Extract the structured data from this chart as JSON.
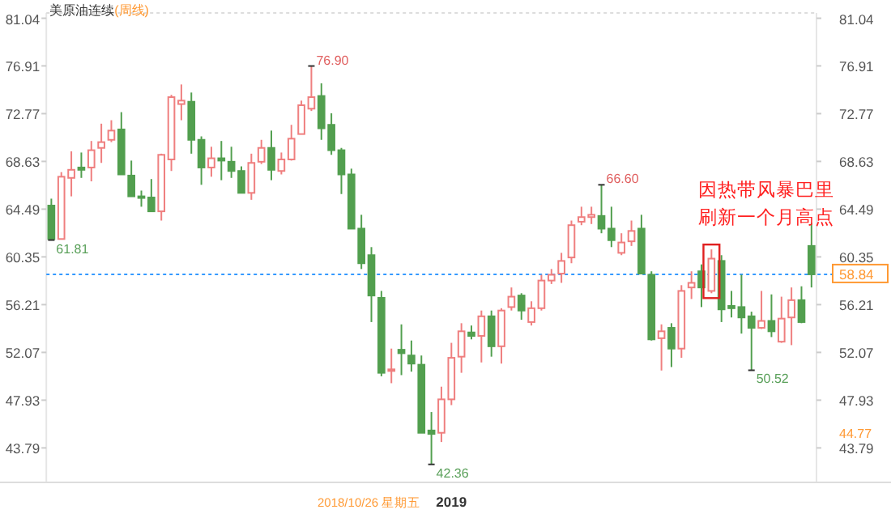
{
  "chart_data": {
    "type": "candlestick",
    "title": "美原油连续",
    "subtitle": "(周线)",
    "categories": [
      null,
      null,
      null,
      null,
      null,
      null,
      null,
      null,
      null,
      null,
      null,
      null,
      null,
      null,
      null,
      null,
      null,
      null,
      null,
      null,
      null,
      null,
      null,
      null,
      null,
      null,
      null,
      null,
      null,
      null,
      null,
      null,
      null,
      null,
      null,
      null,
      null,
      null,
      null,
      null,
      "2019",
      null,
      null,
      null,
      null,
      null,
      null,
      null,
      null,
      null,
      null,
      null,
      null,
      null,
      null,
      null,
      null,
      null,
      null,
      null,
      null,
      null,
      null,
      null,
      null,
      null,
      null,
      null,
      null,
      null,
      null,
      null,
      null,
      null,
      null,
      null,
      null
    ],
    "ohlc": [
      [
        64.8,
        65.4,
        61.81,
        61.9
      ],
      [
        61.9,
        67.7,
        61.9,
        67.3
      ],
      [
        67.2,
        69.5,
        65.6,
        67.9
      ],
      [
        68.1,
        69.4,
        67.2,
        67.9
      ],
      [
        68.1,
        70.4,
        66.9,
        69.6
      ],
      [
        69.8,
        71.9,
        68.5,
        70.3
      ],
      [
        70.5,
        72.2,
        70.3,
        71.3
      ],
      [
        71.4,
        72.9,
        67.5,
        67.5
      ],
      [
        67.4,
        68.7,
        65.6,
        65.6
      ],
      [
        65.6,
        66.1,
        64.7,
        65.5
      ],
      [
        65.5,
        67.1,
        64.3,
        64.3
      ],
      [
        64.3,
        69.3,
        63.5,
        69.2
      ],
      [
        68.8,
        74.4,
        67.8,
        74.2
      ],
      [
        73.6,
        75.3,
        72.2,
        73.9
      ],
      [
        73.8,
        74.6,
        69.3,
        70.5
      ],
      [
        70.5,
        70.8,
        66.6,
        68.1
      ],
      [
        68.1,
        69.9,
        67.3,
        68.9
      ],
      [
        68.9,
        70.4,
        67.0,
        68.7
      ],
      [
        68.6,
        69.9,
        67.2,
        67.8
      ],
      [
        67.8,
        68.2,
        65.9,
        65.9
      ],
      [
        65.9,
        69.3,
        65.3,
        68.5
      ],
      [
        68.6,
        70.5,
        68.4,
        69.8
      ],
      [
        69.8,
        71.3,
        67.0,
        67.9
      ],
      [
        67.8,
        69.4,
        67.5,
        68.8
      ],
      [
        68.8,
        71.8,
        68.7,
        70.6
      ],
      [
        71.0,
        73.9,
        71.0,
        73.5
      ],
      [
        73.2,
        76.9,
        73.0,
        74.2
      ],
      [
        74.3,
        75.4,
        70.5,
        71.5
      ],
      [
        71.8,
        72.8,
        69.2,
        69.6
      ],
      [
        69.6,
        69.8,
        65.8,
        67.5
      ],
      [
        67.5,
        68.0,
        62.8,
        62.8
      ],
      [
        62.8,
        64.0,
        59.3,
        59.8
      ],
      [
        60.5,
        61.2,
        54.7,
        57.0
      ],
      [
        56.8,
        57.4,
        50.0,
        50.3
      ],
      [
        50.5,
        52.4,
        49.4,
        50.6
      ],
      [
        52.3,
        54.5,
        50.1,
        52.0
      ],
      [
        51.8,
        53.1,
        50.4,
        51.1
      ],
      [
        51.0,
        51.8,
        45.1,
        45.1
      ],
      [
        45.3,
        46.9,
        42.36,
        45.0
      ],
      [
        45.1,
        49.1,
        44.3,
        48.0
      ],
      [
        48.0,
        52.9,
        47.5,
        51.6
      ],
      [
        51.7,
        54.6,
        50.3,
        53.9
      ],
      [
        53.8,
        54.4,
        53.2,
        53.5
      ],
      [
        53.5,
        55.7,
        51.2,
        55.2
      ],
      [
        55.2,
        55.7,
        51.7,
        52.6
      ],
      [
        52.6,
        55.9,
        51.1,
        55.7
      ],
      [
        56.0,
        57.7,
        55.7,
        56.9
      ],
      [
        57.0,
        57.2,
        54.9,
        55.7
      ],
      [
        54.7,
        56.5,
        54.4,
        55.9
      ],
      [
        55.9,
        58.8,
        55.7,
        58.3
      ],
      [
        58.3,
        59.3,
        58.0,
        58.8
      ],
      [
        58.9,
        60.7,
        58.1,
        60.0
      ],
      [
        60.3,
        63.5,
        59.8,
        63.1
      ],
      [
        63.4,
        64.7,
        63.1,
        63.8
      ],
      [
        63.8,
        64.7,
        63.2,
        64.0
      ],
      [
        63.9,
        66.6,
        62.4,
        62.8
      ],
      [
        62.8,
        64.7,
        61.2,
        61.8
      ],
      [
        60.7,
        62.4,
        60.5,
        61.6
      ],
      [
        61.7,
        63.5,
        61.3,
        62.6
      ],
      [
        62.8,
        64.0,
        58.85,
        58.9
      ],
      [
        58.8,
        59.1,
        53.1,
        53.2
      ],
      [
        53.3,
        54.5,
        50.5,
        53.9
      ],
      [
        54.2,
        54.6,
        50.8,
        52.4
      ],
      [
        52.4,
        57.9,
        51.6,
        57.4
      ],
      [
        57.7,
        59.1,
        56.7,
        58.1
      ],
      [
        59.1,
        59.7,
        56.0,
        57.7
      ],
      [
        57.4,
        61.0,
        57.2,
        60.2
      ],
      [
        60.0,
        60.5,
        54.7,
        55.8
      ],
      [
        56.1,
        57.4,
        55.1,
        55.9
      ],
      [
        56.0,
        58.8,
        53.7,
        55.1
      ],
      [
        55.2,
        55.6,
        50.52,
        54.2
      ],
      [
        54.2,
        57.4,
        54.1,
        54.8
      ],
      [
        54.8,
        57.1,
        53.4,
        53.9
      ],
      [
        53.0,
        56.9,
        52.9,
        55.0
      ],
      [
        55.1,
        57.7,
        52.7,
        56.6
      ],
      [
        56.6,
        57.8,
        54.6,
        54.7
      ],
      [
        61.3,
        63.3,
        57.7,
        58.84
      ]
    ],
    "colors": [
      "#529f4f",
      "#ef7f7f",
      "#ef7f7f",
      "#529f4f",
      "#ef7f7f",
      "#ef7f7f",
      "#ef7f7f",
      "#529f4f",
      "#529f4f",
      "#529f4f",
      "#529f4f",
      "#ef7f7f",
      "#ef7f7f",
      "#ef7f7f",
      "#529f4f",
      "#529f4f",
      "#ef7f7f",
      "#529f4f",
      "#529f4f",
      "#529f4f",
      "#ef7f7f",
      "#ef7f7f",
      "#529f4f",
      "#ef7f7f",
      "#ef7f7f",
      "#ef7f7f",
      "#ef7f7f",
      "#529f4f",
      "#529f4f",
      "#529f4f",
      "#529f4f",
      "#529f4f",
      "#529f4f",
      "#529f4f",
      "#ef7f7f",
      "#529f4f",
      "#529f4f",
      "#529f4f",
      "#529f4f",
      "#ef7f7f",
      "#ef7f7f",
      "#ef7f7f",
      "#529f4f",
      "#ef7f7f",
      "#529f4f",
      "#ef7f7f",
      "#ef7f7f",
      "#529f4f",
      "#ef7f7f",
      "#ef7f7f",
      "#ef7f7f",
      "#ef7f7f",
      "#ef7f7f",
      "#ef7f7f",
      "#ef7f7f",
      "#529f4f",
      "#529f4f",
      "#ef7f7f",
      "#ef7f7f",
      "#529f4f",
      "#529f4f",
      "#ef7f7f",
      "#529f4f",
      "#ef7f7f",
      "#ef7f7f",
      "#529f4f",
      "#ef7f7f",
      "#529f4f",
      "#529f4f",
      "#529f4f",
      "#529f4f",
      "#ef7f7f",
      "#529f4f",
      "#ef7f7f",
      "#ef7f7f",
      "#529f4f",
      "#529f4f"
    ],
    "ylim": [
      40.8,
      81.5
    ],
    "yticks": [
      43.79,
      47.93,
      52.07,
      56.21,
      60.35,
      64.49,
      68.63,
      72.77,
      76.91,
      81.04
    ],
    "y2lim": [
      40.8,
      81.5
    ],
    "y2ticks": [
      43.79,
      47.93,
      52.07,
      56.21,
      60.35,
      64.49,
      68.63,
      72.77,
      76.91,
      81.04
    ],
    "ref_lines": [
      {
        "axis": "y2",
        "value": 58.84,
        "label": "58.84",
        "color": "#3399ff",
        "line_style": "dotted"
      }
    ],
    "annotations": [
      "2018/10/26 星期五",
      "61.81",
      "76.90",
      "42.36",
      "66.60",
      "50.52",
      "因热带风暴巴里刷新一个月高点",
      "44.77"
    ]
  }
}
